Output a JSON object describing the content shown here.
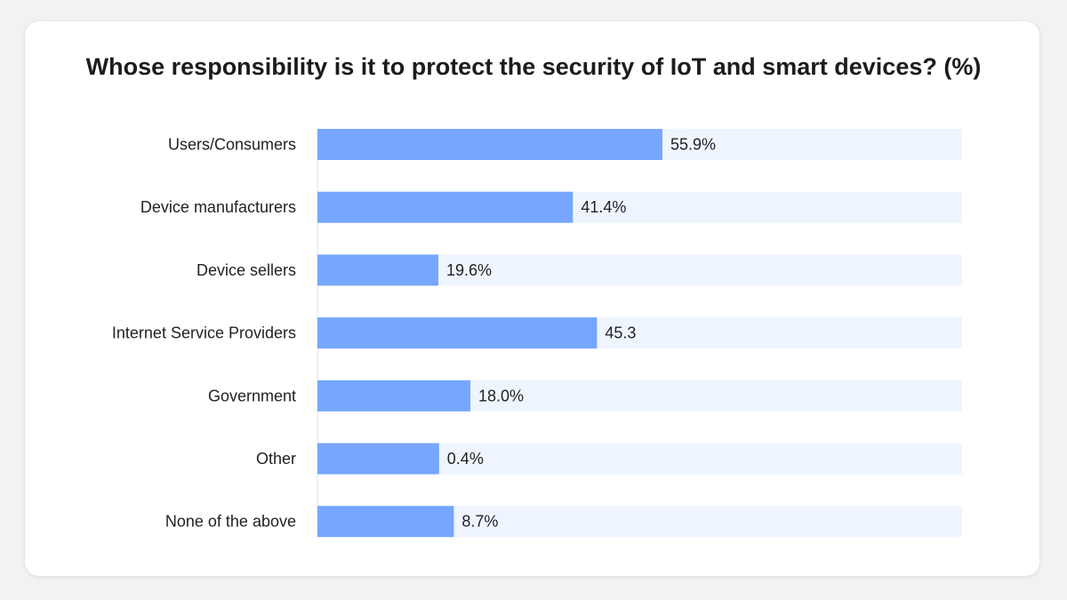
{
  "chart_data": {
    "type": "bar",
    "orientation": "horizontal",
    "title": "Whose responsibility is it to protect the security of IoT and smart devices? (%)",
    "categories": [
      "Users/Consumers",
      "Device manufacturers",
      "Device sellers",
      "Internet Service Providers",
      "Government",
      "Other",
      "None of the above"
    ],
    "values": [
      55.9,
      41.4,
      19.6,
      45.3,
      18.0,
      0.4,
      8.7
    ],
    "value_labels": [
      "55.9%",
      "41.4%",
      "19.6%",
      "45.3",
      "18.0%",
      "0.4%",
      "8.7%"
    ],
    "xlim": [
      0,
      100
    ],
    "colors": {
      "bar": "#76a6fd",
      "track": "#eff5ff",
      "axis": "#dde3ea"
    },
    "grid": false,
    "legend": "none"
  }
}
